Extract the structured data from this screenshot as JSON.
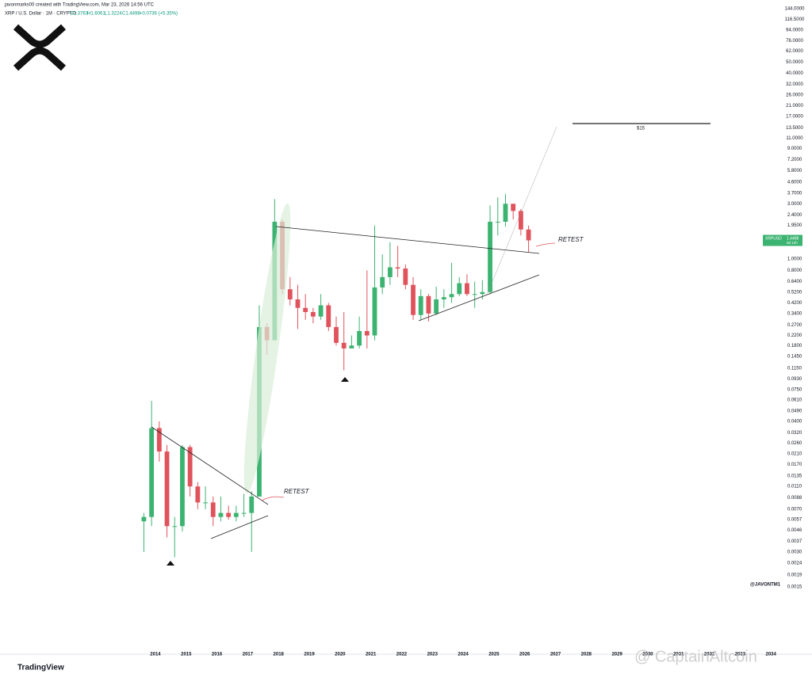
{
  "header": {
    "credit": "javonmarks00 created with TradingView.com, Mar 23, 2026 14:56 UTC",
    "symbol": "XRP / U.S. Dollar · 1M · CRYPTO",
    "open": "O1.3763",
    "high": "H1.6061",
    "low": "L1.3224",
    "close": "C1.4498",
    "change": "+0.0736 (+5.35%)"
  },
  "chart_data": {
    "type": "candlestick",
    "log_scale": true,
    "grid": false,
    "up_color": "#3cb371",
    "down_color": "#e0535c",
    "x": [
      2013.625,
      2013.875,
      2014.125,
      2014.375,
      2014.625,
      2014.875,
      2015.125,
      2015.375,
      2015.625,
      2015.875,
      2016.125,
      2016.375,
      2016.625,
      2016.875,
      2017.125,
      2017.375,
      2017.625,
      2017.875,
      2018.125,
      2018.375,
      2018.625,
      2018.875,
      2019.125,
      2019.375,
      2019.625,
      2019.875,
      2020.125,
      2020.375,
      2020.625,
      2020.875,
      2021.125,
      2021.375,
      2021.625,
      2021.875,
      2022.125,
      2022.375,
      2022.625,
      2022.875,
      2023.125,
      2023.375,
      2023.625,
      2023.875,
      2024.125,
      2024.375,
      2024.625,
      2024.875,
      2025.125,
      2025.375,
      2025.625,
      2025.875,
      2026.125
    ],
    "open": [
      0.0055,
      0.006,
      0.035,
      0.022,
      0.005,
      0.005,
      0.024,
      0.011,
      0.008,
      0.008,
      0.006,
      0.0065,
      0.006,
      0.0065,
      0.0065,
      0.009,
      0.26,
      0.2,
      2.1,
      0.55,
      0.45,
      0.38,
      0.35,
      0.32,
      0.4,
      0.26,
      0.19,
      0.17,
      0.18,
      0.24,
      0.22,
      0.57,
      0.7,
      0.85,
      0.83,
      0.6,
      0.33,
      0.48,
      0.34,
      0.45,
      0.47,
      0.5,
      0.62,
      0.5,
      0.5,
      0.52,
      2.1,
      2.1,
      3.0,
      2.6,
      1.8
    ],
    "high": [
      0.0065,
      0.06,
      0.04,
      0.025,
      0.006,
      0.025,
      0.025,
      0.012,
      0.011,
      0.009,
      0.009,
      0.0075,
      0.0075,
      0.0095,
      0.01,
      0.4,
      0.28,
      3.3,
      2.2,
      0.7,
      0.6,
      0.5,
      0.38,
      0.5,
      0.42,
      0.32,
      0.35,
      0.22,
      0.32,
      0.8,
      1.95,
      1.1,
      1.4,
      1.3,
      0.9,
      0.7,
      0.55,
      0.5,
      0.58,
      0.55,
      0.93,
      0.7,
      0.74,
      0.64,
      0.66,
      2.9,
      3.4,
      3.65,
      3.0,
      2.7,
      1.95
    ],
    "low": [
      0.003,
      0.005,
      0.018,
      0.004,
      0.0027,
      0.0045,
      0.009,
      0.007,
      0.007,
      0.005,
      0.0055,
      0.0057,
      0.0055,
      0.006,
      0.003,
      0.009,
      0.15,
      0.2,
      0.5,
      0.4,
      0.25,
      0.3,
      0.28,
      0.3,
      0.24,
      0.18,
      0.11,
      0.17,
      0.17,
      0.17,
      0.2,
      0.5,
      0.6,
      0.7,
      0.55,
      0.3,
      0.3,
      0.29,
      0.33,
      0.38,
      0.42,
      0.48,
      0.48,
      0.38,
      0.45,
      0.5,
      1.6,
      1.9,
      2.2,
      1.6,
      1.15
    ],
    "close": [
      0.006,
      0.035,
      0.022,
      0.005,
      0.005,
      0.024,
      0.011,
      0.008,
      0.008,
      0.006,
      0.0065,
      0.006,
      0.0065,
      0.0065,
      0.009,
      0.26,
      0.2,
      2.1,
      0.55,
      0.45,
      0.38,
      0.35,
      0.32,
      0.4,
      0.26,
      0.19,
      0.17,
      0.18,
      0.24,
      0.22,
      0.57,
      0.7,
      0.85,
      0.83,
      0.6,
      0.33,
      0.48,
      0.34,
      0.45,
      0.47,
      0.5,
      0.62,
      0.5,
      0.5,
      0.52,
      2.1,
      2.1,
      3.0,
      2.6,
      1.8,
      1.45
    ],
    "xlim": [
      2008.95,
      2034.33
    ],
    "xticks": [
      2014,
      2015,
      2016,
      2017,
      2018,
      2019,
      2020,
      2021,
      2022,
      2023,
      2024,
      2025,
      2026,
      2027,
      2028,
      2029,
      2030,
      2031,
      2032,
      2033,
      2034
    ],
    "ylim": [
      0.0004,
      171
    ],
    "yticks": [
      {
        "value": 144,
        "label": "144.0000"
      },
      {
        "value": 116.5,
        "label": "116.5000"
      },
      {
        "value": 94,
        "label": "94.0000"
      },
      {
        "value": 76,
        "label": "76.0000"
      },
      {
        "value": 62,
        "label": "62.0000"
      },
      {
        "value": 50,
        "label": "50.0000"
      },
      {
        "value": 40,
        "label": "40.0000"
      },
      {
        "value": 32,
        "label": "32.0000"
      },
      {
        "value": 26,
        "label": "26.0000"
      },
      {
        "value": 21,
        "label": "21.0000"
      },
      {
        "value": 17,
        "label": "17.0000"
      },
      {
        "value": 13.5,
        "label": "13.5000"
      },
      {
        "value": 11,
        "label": "11.0000"
      },
      {
        "value": 9,
        "label": "9.0000"
      },
      {
        "value": 7.2,
        "label": "7.2000"
      },
      {
        "value": 5.8,
        "label": "5.8000"
      },
      {
        "value": 4.6,
        "label": "4.6000"
      },
      {
        "value": 3.7,
        "label": "3.7000"
      },
      {
        "value": 3,
        "label": "3.0000"
      },
      {
        "value": 2.4,
        "label": "2.4000"
      },
      {
        "value": 1.95,
        "label": "1.9500"
      },
      {
        "value": 1,
        "label": "1.0000"
      },
      {
        "value": 0.8,
        "label": "0.8000"
      },
      {
        "value": 0.64,
        "label": "0.6400"
      },
      {
        "value": 0.52,
        "label": "0.5200"
      },
      {
        "value": 0.42,
        "label": "0.4200"
      },
      {
        "value": 0.34,
        "label": "0.3400"
      },
      {
        "value": 0.27,
        "label": "0.2700"
      },
      {
        "value": 0.22,
        "label": "0.2200"
      },
      {
        "value": 0.18,
        "label": "0.1800"
      },
      {
        "value": 0.145,
        "label": "0.1450"
      },
      {
        "value": 0.115,
        "label": "0.1150"
      },
      {
        "value": 0.093,
        "label": "0.0930"
      },
      {
        "value": 0.075,
        "label": "0.0750"
      },
      {
        "value": 0.061,
        "label": "0.0610"
      },
      {
        "value": 0.049,
        "label": "0.0490"
      },
      {
        "value": 0.04,
        "label": "0.0400"
      },
      {
        "value": 0.032,
        "label": "0.0320"
      },
      {
        "value": 0.026,
        "label": "0.0260"
      },
      {
        "value": 0.021,
        "label": "0.0210"
      },
      {
        "value": 0.017,
        "label": "0.0170"
      },
      {
        "value": 0.0135,
        "label": "0.0135"
      },
      {
        "value": 0.011,
        "label": "0.0110"
      },
      {
        "value": 0.0088,
        "label": "0.0088"
      },
      {
        "value": 0.007,
        "label": "0.0070"
      },
      {
        "value": 0.0057,
        "label": "0.0057"
      },
      {
        "value": 0.0046,
        "label": "0.0046"
      },
      {
        "value": 0.0037,
        "label": "0.0037"
      },
      {
        "value": 0.003,
        "label": "0.0030"
      },
      {
        "value": 0.0024,
        "label": "0.0024"
      },
      {
        "value": 0.0019,
        "label": "0.0019"
      },
      {
        "value": 0.0015,
        "label": "0.0015"
      }
    ],
    "last_price": {
      "value": 1.4498,
      "label": "1.4498",
      "symbol": "XRPUSD",
      "countdown": "8d 12h"
    },
    "annotations": {
      "target": "$15",
      "retest_1": "RETEST",
      "retest_2": "RETEST",
      "handle": "@JAVONTM1"
    },
    "brand": "TradingView",
    "watermark": "@ CaptainAltcoin"
  }
}
